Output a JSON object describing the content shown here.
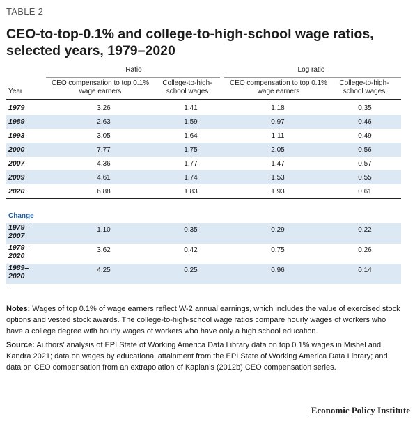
{
  "table_label": "TABLE 2",
  "title": "CEO-to-top-0.1% and college-to-high-school wage ratios, selected years, 1979–2020",
  "groups": {
    "ratio": "Ratio",
    "log_ratio": "Log ratio"
  },
  "columns": {
    "year": "Year",
    "ceo_ratio": "CEO compensation to top 0.1% wage earners",
    "college_ratio": "College-to-high-school wages",
    "ceo_log": "CEO compensation to top 0.1% wage earners",
    "college_log": "College-to-high-school wages"
  },
  "rows": [
    {
      "year": "1979",
      "ceo_ratio": "3.26",
      "college_ratio": "1.41",
      "ceo_log": "1.18",
      "college_log": "0.35"
    },
    {
      "year": "1989",
      "ceo_ratio": "2.63",
      "college_ratio": "1.59",
      "ceo_log": "0.97",
      "college_log": "0.46"
    },
    {
      "year": "1993",
      "ceo_ratio": "3.05",
      "college_ratio": "1.64",
      "ceo_log": "1.11",
      "college_log": "0.49"
    },
    {
      "year": "2000",
      "ceo_ratio": "7.77",
      "college_ratio": "1.75",
      "ceo_log": "2.05",
      "college_log": "0.56"
    },
    {
      "year": "2007",
      "ceo_ratio": "4.36",
      "college_ratio": "1.77",
      "ceo_log": "1.47",
      "college_log": "0.57"
    },
    {
      "year": "2009",
      "ceo_ratio": "4.61",
      "college_ratio": "1.74",
      "ceo_log": "1.53",
      "college_log": "0.55"
    },
    {
      "year": "2020",
      "ceo_ratio": "6.88",
      "college_ratio": "1.83",
      "ceo_log": "1.93",
      "college_log": "0.61"
    }
  ],
  "change_label": "Change",
  "change_rows": [
    {
      "period_top": "1979–",
      "period_bottom": "2007",
      "ceo_ratio": "1.10",
      "college_ratio": "0.35",
      "ceo_log": "0.29",
      "college_log": "0.22"
    },
    {
      "period_top": "1979–",
      "period_bottom": "2020",
      "ceo_ratio": "3.62",
      "college_ratio": "0.42",
      "ceo_log": "0.75",
      "college_log": "0.26"
    },
    {
      "period_top": "1989–",
      "period_bottom": "2020",
      "ceo_ratio": "4.25",
      "college_ratio": "0.25",
      "ceo_log": "0.96",
      "college_log": "0.14"
    }
  ],
  "notes": {
    "label": "Notes:",
    "text": "Wages of top 0.1% of wage earners reflect W-2 annual earnings, which includes the value of exercised stock options and vested stock awards. The college-to-high-school wage ratios compare hourly wages of workers who have a college degree with hourly wages of workers who have only a high school education."
  },
  "source": {
    "label": "Source:",
    "text": "Authors’ analysis of EPI State of Working America Data Library data on top 0.1% wages in Mishel and Kandra 2021; data on wages by educational attainment from the EPI State of Working America Data Library; and data on CEO compensation from an extrapolation of Kaplan’s (2012b) CEO compensation series."
  },
  "footer": "Economic Policy Institute",
  "colors": {
    "row_shade": "#dde8f5",
    "change_label": "#1f5fa6"
  }
}
